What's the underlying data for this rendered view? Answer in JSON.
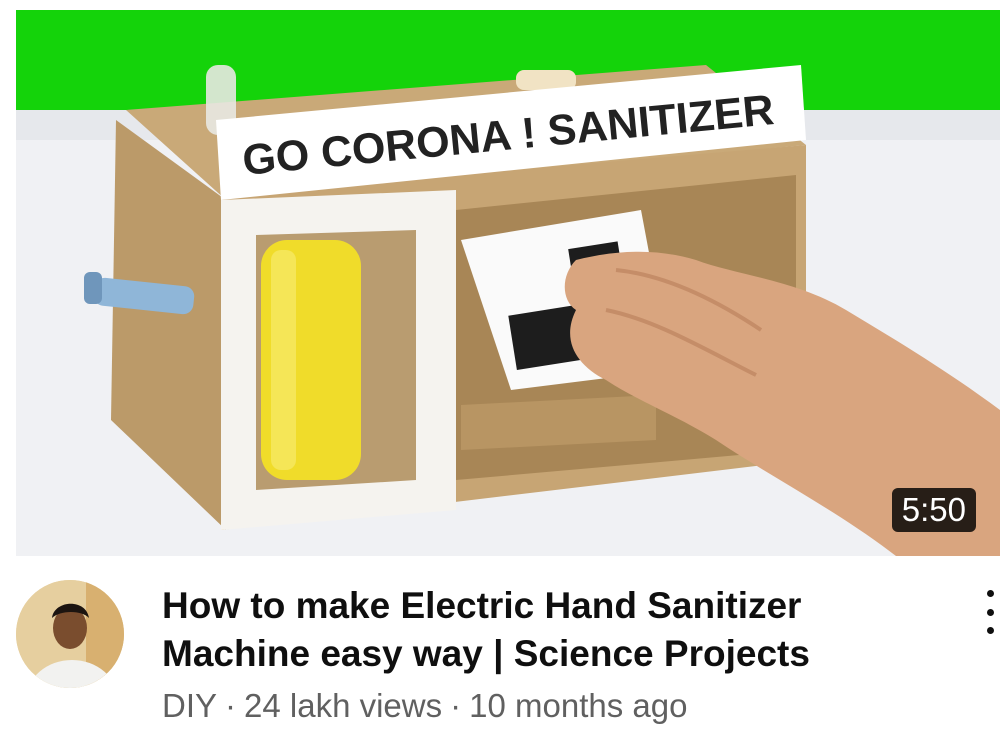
{
  "video": {
    "thumbnail_sign_text": "GO CORONA ! SANITIZER",
    "duration": "5:50",
    "title": "How to make Electric Hand Sanitizer Machine easy way | Science Projects",
    "channel": "DIY",
    "separator": "·",
    "views": "24 lakh views",
    "age": "10 months ago"
  },
  "icons": {
    "menu": "more-vert-icon",
    "avatar": "channel-avatar"
  },
  "colors": {
    "title": "#0f0f0f",
    "meta": "#606060",
    "duration_bg": "#000000",
    "thumbnail_green": "#14d30a"
  }
}
